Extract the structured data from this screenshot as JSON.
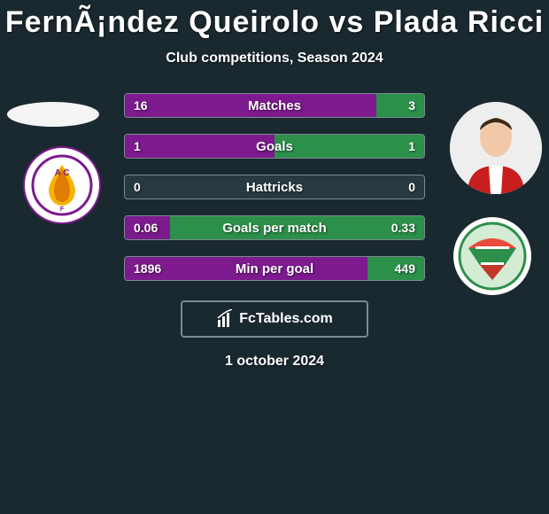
{
  "title": "FernÃ¡ndez Queirolo vs Plada Ricci",
  "subtitle": "Club competitions, Season 2024",
  "date": "1 october 2024",
  "brand": "FcTables.com",
  "colors": {
    "left": "#7d1a8e",
    "right": "#2c8f4a",
    "bar_bg": "#273a42"
  },
  "stats": [
    {
      "label": "Matches",
      "left_val": "16",
      "right_val": "3",
      "left_pct": 84,
      "right_pct": 16
    },
    {
      "label": "Goals",
      "left_val": "1",
      "right_val": "1",
      "left_pct": 50,
      "right_pct": 50
    },
    {
      "label": "Hattricks",
      "left_val": "0",
      "right_val": "0",
      "left_pct": 0,
      "right_pct": 0
    },
    {
      "label": "Goals per match",
      "left_val": "0.06",
      "right_val": "0.33",
      "left_pct": 15,
      "right_pct": 85
    },
    {
      "label": "Min per goal",
      "left_val": "1896",
      "right_val": "449",
      "left_pct": 81,
      "right_pct": 19
    }
  ]
}
